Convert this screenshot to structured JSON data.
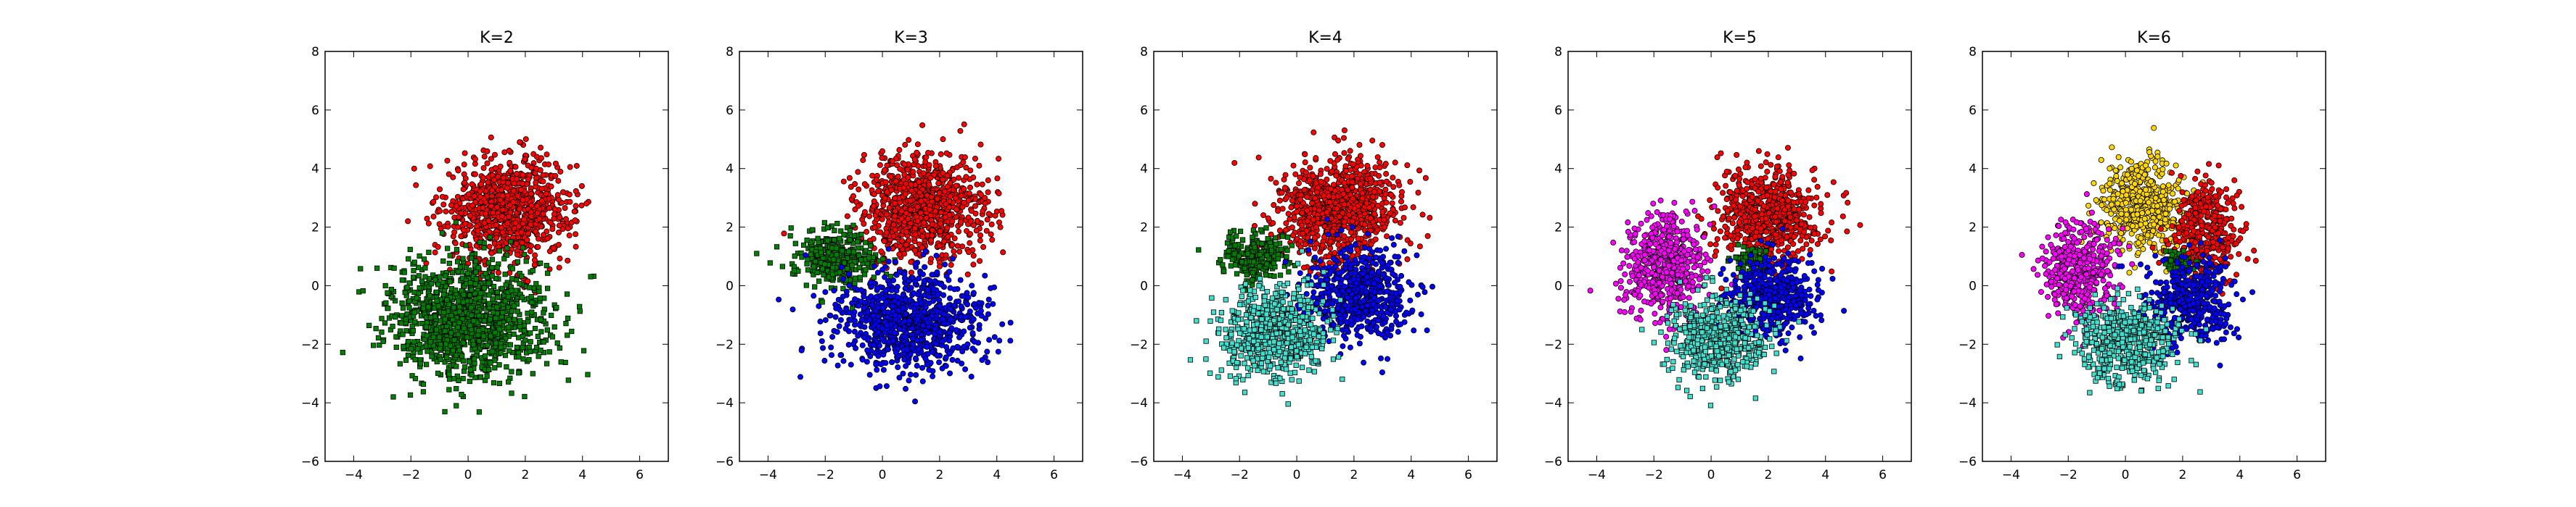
{
  "chart_data": [
    {
      "type": "scatter",
      "title": "K=2",
      "xlim": [
        -5,
        7
      ],
      "ylim": [
        -6,
        8
      ],
      "xticks": [
        -4,
        -2,
        0,
        2,
        4,
        6
      ],
      "yticks": [
        -6,
        -4,
        -2,
        0,
        2,
        4,
        6,
        8
      ],
      "series": [
        {
          "color": "#ff0000",
          "marker": "circle",
          "center": [
            1.4,
            2.6
          ],
          "spread": [
            1.1,
            0.9
          ],
          "count": 900
        },
        {
          "color": "#008000",
          "marker": "square",
          "center": [
            0.0,
            -1.1
          ],
          "spread": [
            1.4,
            1.0
          ],
          "count": 1200
        }
      ]
    },
    {
      "type": "scatter",
      "title": "K=3",
      "xlim": [
        -5,
        7
      ],
      "ylim": [
        -6,
        8
      ],
      "xticks": [
        -4,
        -2,
        0,
        2,
        4,
        6
      ],
      "yticks": [
        -6,
        -4,
        -2,
        0,
        2,
        4,
        6,
        8
      ],
      "series": [
        {
          "color": "#ff0000",
          "marker": "circle",
          "center": [
            1.4,
            2.6
          ],
          "spread": [
            1.1,
            0.9
          ],
          "count": 900
        },
        {
          "color": "#008000",
          "marker": "square",
          "center": [
            -1.6,
            0.9
          ],
          "spread": [
            0.7,
            0.5
          ],
          "count": 350
        },
        {
          "color": "#0000ff",
          "marker": "circle",
          "center": [
            0.9,
            -1.2
          ],
          "spread": [
            1.3,
            0.9
          ],
          "count": 900
        }
      ]
    },
    {
      "type": "scatter",
      "title": "K=4",
      "xlim": [
        -5,
        7
      ],
      "ylim": [
        -6,
        8
      ],
      "xticks": [
        -4,
        -2,
        0,
        2,
        4,
        6
      ],
      "yticks": [
        -6,
        -4,
        -2,
        0,
        2,
        4,
        6,
        8
      ],
      "series": [
        {
          "color": "#ff0000",
          "marker": "circle",
          "center": [
            1.4,
            2.6
          ],
          "spread": [
            1.1,
            0.9
          ],
          "count": 900
        },
        {
          "color": "#008000",
          "marker": "square",
          "center": [
            -1.4,
            1.0
          ],
          "spread": [
            0.6,
            0.4
          ],
          "count": 250
        },
        {
          "color": "#0000ff",
          "marker": "circle",
          "center": [
            2.1,
            -0.3
          ],
          "spread": [
            0.9,
            0.8
          ],
          "count": 600
        },
        {
          "color": "#40e0d0",
          "marker": "square",
          "center": [
            -0.8,
            -1.6
          ],
          "spread": [
            0.9,
            0.8
          ],
          "count": 650
        }
      ]
    },
    {
      "type": "scatter",
      "title": "K=5",
      "xlim": [
        -5,
        7
      ],
      "ylim": [
        -6,
        8
      ],
      "xticks": [
        -4,
        -2,
        0,
        2,
        4,
        6
      ],
      "yticks": [
        -6,
        -4,
        -2,
        0,
        2,
        4,
        6,
        8
      ],
      "series": [
        {
          "color": "#ff0000",
          "marker": "circle",
          "center": [
            2.0,
            2.4
          ],
          "spread": [
            0.9,
            0.8
          ],
          "count": 650
        },
        {
          "color": "#ff00ff",
          "marker": "circle",
          "center": [
            -1.6,
            0.7
          ],
          "spread": [
            0.7,
            0.9
          ],
          "count": 550
        },
        {
          "color": "#008000",
          "marker": "square",
          "center": [
            1.4,
            0.9
          ],
          "spread": [
            0.3,
            0.2
          ],
          "count": 80
        },
        {
          "color": "#0000ff",
          "marker": "circle",
          "center": [
            2.1,
            -0.4
          ],
          "spread": [
            0.8,
            0.7
          ],
          "count": 500
        },
        {
          "color": "#40e0d0",
          "marker": "square",
          "center": [
            0.2,
            -1.8
          ],
          "spread": [
            0.9,
            0.7
          ],
          "count": 550
        }
      ]
    },
    {
      "type": "scatter",
      "title": "K=6",
      "xlim": [
        -5,
        7
      ],
      "ylim": [
        -6,
        8
      ],
      "xticks": [
        -4,
        -2,
        0,
        2,
        4,
        6
      ],
      "yticks": [
        -6,
        -4,
        -2,
        0,
        2,
        4,
        6,
        8
      ],
      "series": [
        {
          "color": "#ffd700",
          "marker": "circle",
          "center": [
            0.6,
            2.7
          ],
          "spread": [
            0.8,
            0.8
          ],
          "count": 550
        },
        {
          "color": "#ff0000",
          "marker": "circle",
          "center": [
            2.8,
            1.9
          ],
          "spread": [
            0.6,
            0.9
          ],
          "count": 400
        },
        {
          "color": "#ff00ff",
          "marker": "circle",
          "center": [
            -1.6,
            0.5
          ],
          "spread": [
            0.6,
            0.8
          ],
          "count": 450
        },
        {
          "color": "#008000",
          "marker": "square",
          "center": [
            1.9,
            0.7
          ],
          "spread": [
            0.3,
            0.2
          ],
          "count": 60
        },
        {
          "color": "#0000ff",
          "marker": "circle",
          "center": [
            2.3,
            -0.5
          ],
          "spread": [
            0.7,
            0.7
          ],
          "count": 450
        },
        {
          "color": "#40e0d0",
          "marker": "square",
          "center": [
            0.0,
            -1.9
          ],
          "spread": [
            0.9,
            0.7
          ],
          "count": 500
        }
      ]
    }
  ]
}
